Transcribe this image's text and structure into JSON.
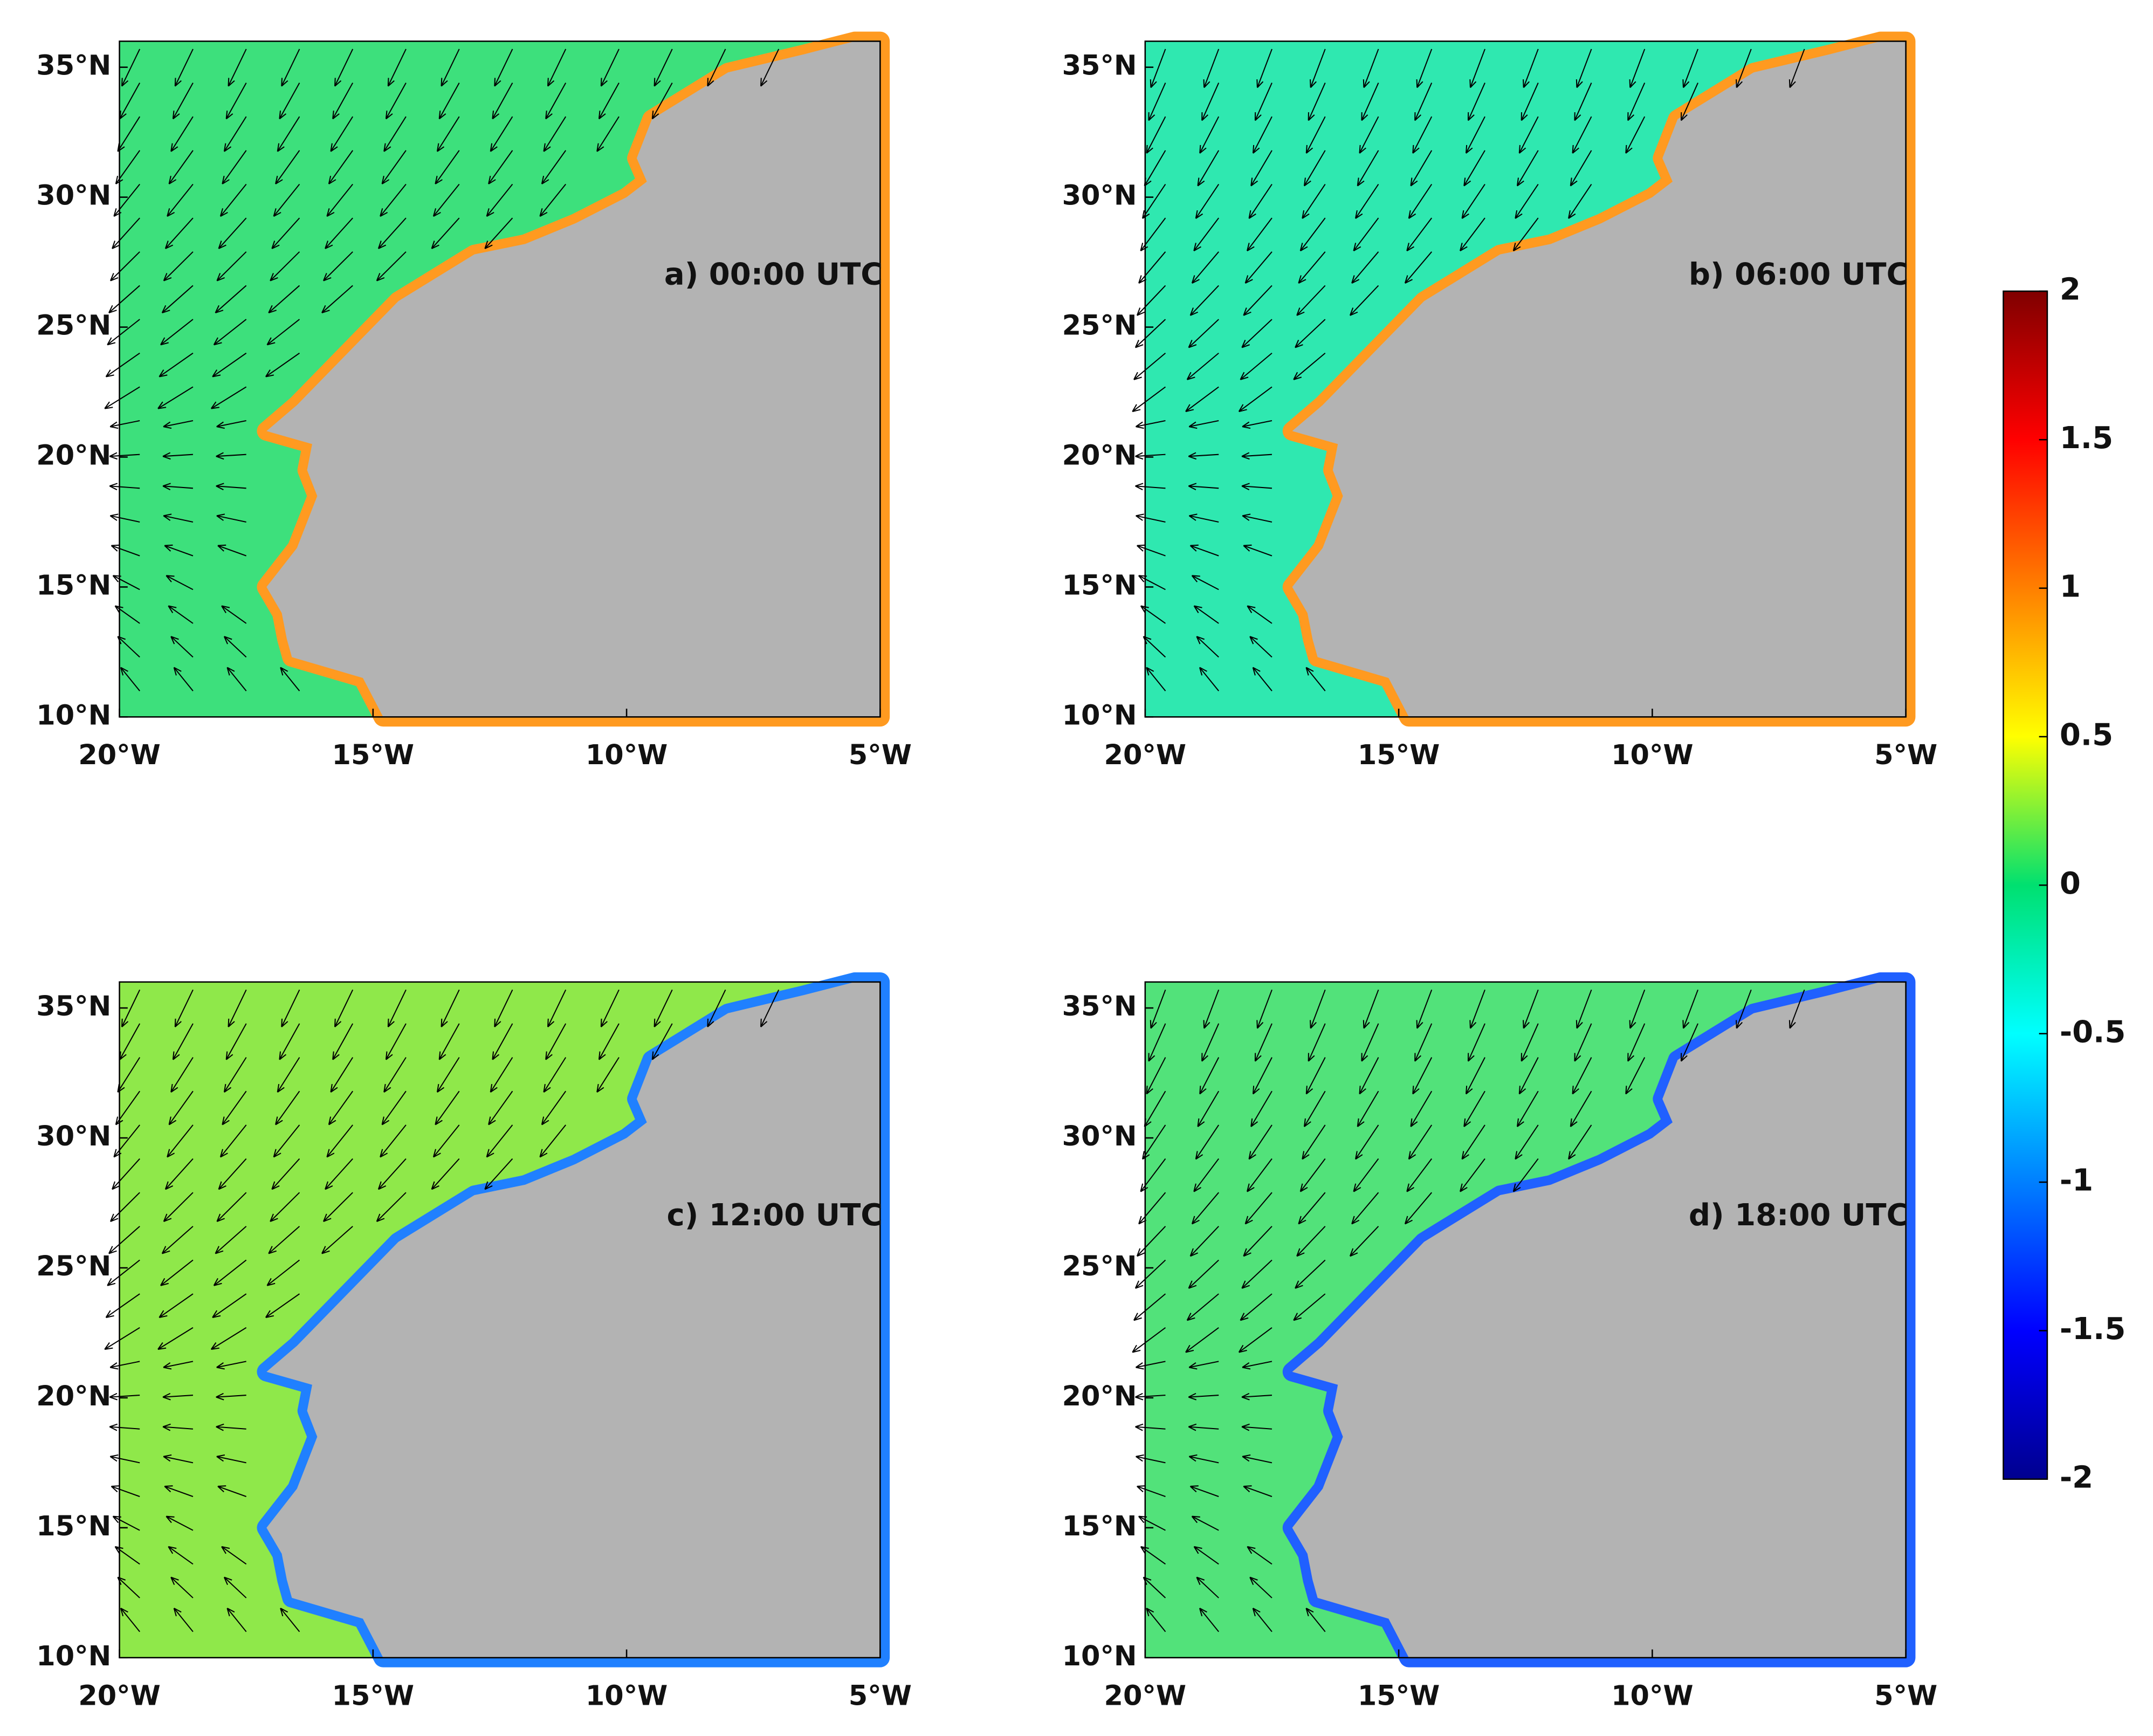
{
  "panels": [
    {
      "label": "a) 00:00 UTC"
    },
    {
      "label": "b) 06:00 UTC"
    },
    {
      "label": "c) 12:00 UTC"
    },
    {
      "label": "d) 18:00 UTC"
    }
  ],
  "map": {
    "xlim": [
      -20,
      -5
    ],
    "ylim": [
      10,
      36
    ],
    "xticks": [
      {
        "value": -20,
        "label": "20°W"
      },
      {
        "value": -15,
        "label": "15°W"
      },
      {
        "value": -10,
        "label": "10°W"
      },
      {
        "value": -5,
        "label": "5°W"
      }
    ],
    "yticks": [
      {
        "value": 10,
        "label": "10°N"
      },
      {
        "value": 15,
        "label": "15°N"
      },
      {
        "value": 20,
        "label": "20°N"
      },
      {
        "value": 25,
        "label": "25°N"
      },
      {
        "value": 30,
        "label": "30°N"
      },
      {
        "value": 35,
        "label": "35°N"
      }
    ]
  },
  "colorbar": {
    "clim": [
      -2,
      2
    ],
    "ticks": [
      2,
      1.5,
      1,
      0.5,
      0,
      -0.5,
      -1,
      -1.5,
      -2
    ]
  }
}
